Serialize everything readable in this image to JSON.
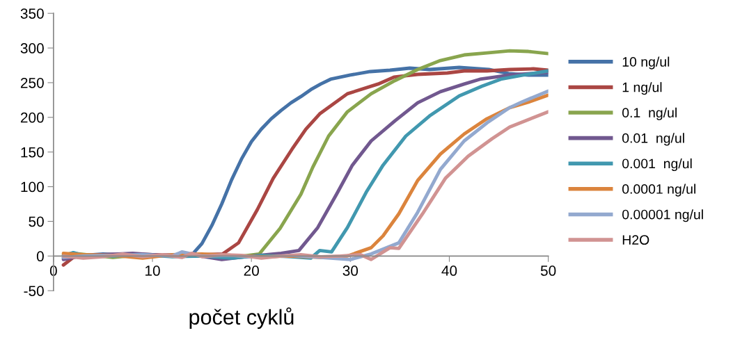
{
  "chart_data": {
    "type": "line",
    "xlabel": "počet cyklů",
    "xlim": [
      0,
      50
    ],
    "xticks": [
      0,
      10,
      20,
      30,
      40,
      50
    ],
    "ylim": [
      -50,
      350
    ],
    "yticks": [
      -50,
      0,
      50,
      100,
      150,
      200,
      250,
      300,
      350
    ],
    "grid": false,
    "legend": "right",
    "marker": "none",
    "line_style": "solid",
    "series": [
      {
        "name": "10 ng/ul",
        "color": "#4572a7",
        "x": [
          1,
          2,
          3,
          5,
          8,
          10,
          12,
          14,
          15,
          16,
          17,
          18,
          19,
          20,
          21,
          22,
          23,
          24,
          25,
          26,
          27,
          28,
          30,
          32,
          34,
          36,
          38,
          41,
          44,
          46,
          48,
          50
        ],
        "values": [
          -3,
          3,
          1,
          3,
          1,
          0,
          1,
          2,
          18,
          44,
          75,
          110,
          140,
          165,
          183,
          198,
          210,
          221,
          230,
          240,
          248,
          255,
          261,
          266,
          268,
          271,
          269,
          272,
          269,
          263,
          261,
          261
        ]
      },
      {
        "name": "1 ng/ul",
        "color": "#aa4643",
        "x": [
          1,
          2,
          3,
          5,
          8,
          10,
          13,
          15,
          17.1,
          18.7,
          20.6,
          22.2,
          24.1,
          25.5,
          26.9,
          29.7,
          32.8,
          34.4,
          36.8,
          39.8,
          41.5,
          43.8,
          46.1,
          48.5,
          50
        ],
        "values": [
          -13,
          -2,
          1,
          2,
          3,
          2,
          1,
          2,
          3,
          19,
          67,
          112,
          154,
          183,
          205,
          234,
          248,
          258,
          262,
          264,
          267,
          267,
          269,
          270,
          268
        ]
      },
      {
        "name": "0.1  ng/ul",
        "color": "#89a54e",
        "x": [
          1,
          2,
          4,
          6,
          9,
          12,
          15,
          18,
          20.8,
          22.9,
          25,
          26.2,
          27.8,
          29.7,
          32.1,
          34.5,
          36.8,
          39.1,
          41.5,
          43.8,
          46.1,
          48,
          50
        ],
        "values": [
          2,
          4,
          1,
          -2,
          2,
          0,
          1,
          -2,
          3,
          40,
          89,
          128,
          173,
          208,
          234,
          253,
          269,
          282,
          290,
          293,
          296,
          295,
          292
        ]
      },
      {
        "name": "0.01  ng/ul",
        "color": "#71588f",
        "x": [
          1,
          3,
          5,
          8,
          11,
          14,
          17,
          20,
          23,
          24.8,
          26.7,
          28.6,
          30.2,
          32.1,
          34.5,
          36.8,
          39.1,
          41.5,
          43.1,
          46.1,
          50
        ],
        "values": [
          -5,
          1,
          2,
          4,
          1,
          2,
          -5,
          0,
          4,
          8,
          41,
          89,
          131,
          166,
          195,
          221,
          237,
          248,
          255,
          261,
          265
        ]
      },
      {
        "name": "0.001  ng/ul",
        "color": "#4198af",
        "x": [
          1,
          2,
          3,
          6,
          9,
          12,
          15,
          18,
          21,
          24,
          26,
          26.9,
          28.1,
          29.7,
          31.6,
          33.3,
          35.6,
          38,
          41,
          43.3,
          45.2,
          47.5,
          50
        ],
        "values": [
          0,
          5,
          1,
          0,
          2,
          -1,
          0,
          -3,
          1,
          -1,
          -3,
          8,
          6,
          41,
          92,
          131,
          173,
          202,
          231,
          245,
          255,
          261,
          267
        ]
      },
      {
        "name": "0.0001 ng/ul",
        "color": "#db843d",
        "x": [
          1,
          3,
          6,
          9,
          12,
          15,
          18,
          21,
          24,
          27,
          29.7,
          32.1,
          33.3,
          34.9,
          36.8,
          39.1,
          41.5,
          43.8,
          46.1,
          48,
          50
        ],
        "values": [
          4,
          2,
          1,
          -3,
          2,
          3,
          1,
          -1,
          0,
          -2,
          0,
          12,
          29,
          61,
          109,
          147,
          176,
          198,
          214,
          222,
          232
        ]
      },
      {
        "name": "0.00001 ng/ul",
        "color": "#93a9cf",
        "x": [
          1,
          3,
          6,
          9,
          12,
          13,
          15,
          18,
          21,
          24,
          27,
          30,
          32.1,
          34.9,
          36.8,
          39.1,
          41.5,
          43.8,
          46.1,
          47.3,
          50
        ],
        "values": [
          -2,
          0,
          1,
          2,
          0,
          6,
          0,
          1,
          -2,
          1,
          -2,
          -5,
          3,
          19,
          63,
          125,
          166,
          192,
          214,
          222,
          238
        ]
      },
      {
        "name": "H2O",
        "color": "#d19392",
        "x": [
          1,
          3,
          5,
          7,
          9,
          11,
          13,
          14,
          15,
          17,
          19,
          21,
          23,
          25,
          27,
          29,
          31,
          32.1,
          34,
          34.9,
          37.3,
          39.6,
          41.9,
          44.3,
          46.1,
          50
        ],
        "values": [
          0,
          -3,
          -1,
          3,
          -1,
          2,
          -2,
          4,
          -1,
          2,
          1,
          -3,
          0,
          2,
          -1,
          0,
          2,
          -5,
          12,
          11,
          61,
          112,
          144,
          169,
          186,
          208
        ]
      }
    ]
  }
}
